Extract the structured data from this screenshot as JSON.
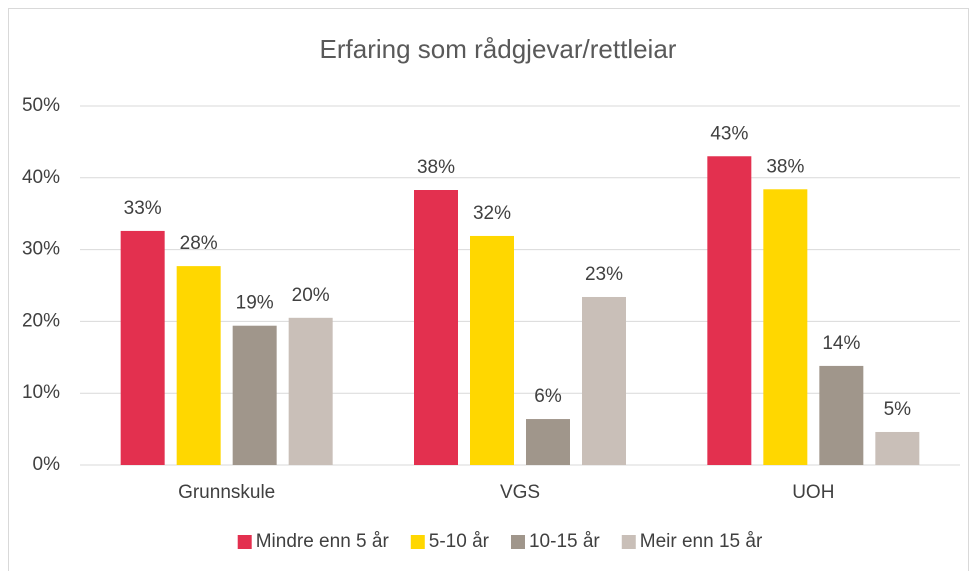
{
  "chart_data": {
    "type": "bar",
    "title": "Erfaring som rådgjevar/rettleiar",
    "categories": [
      "Grunnskule",
      "VGS",
      "UOH"
    ],
    "series": [
      {
        "name": "Mindre enn 5 år",
        "color": "#e3304f",
        "values": [
          32.6,
          38.3,
          43.0
        ],
        "value_labels": [
          "33%",
          "38%",
          "43%"
        ]
      },
      {
        "name": "5-10 år",
        "color": "#ffd700",
        "values": [
          27.7,
          31.9,
          38.4
        ],
        "value_labels": [
          "28%",
          "32%",
          "38%"
        ]
      },
      {
        "name": "10-15 år",
        "color": "#a0968b",
        "values": [
          19.4,
          6.4,
          13.8
        ],
        "value_labels": [
          "19%",
          "6%",
          "14%"
        ]
      },
      {
        "name": "Meir enn 15 år",
        "color": "#c9bfb8",
        "values": [
          20.5,
          23.4,
          4.6
        ],
        "value_labels": [
          "20%",
          "23%",
          "5%"
        ]
      }
    ],
    "ylim": [
      0,
      50
    ],
    "yticks": [
      {
        "value": 0,
        "label": "0%"
      },
      {
        "value": 10,
        "label": "10%"
      },
      {
        "value": 20,
        "label": "20%"
      },
      {
        "value": 30,
        "label": "30%"
      },
      {
        "value": 40,
        "label": "40%"
      },
      {
        "value": 50,
        "label": "50%"
      }
    ],
    "grid": true,
    "legend": "bottom"
  }
}
